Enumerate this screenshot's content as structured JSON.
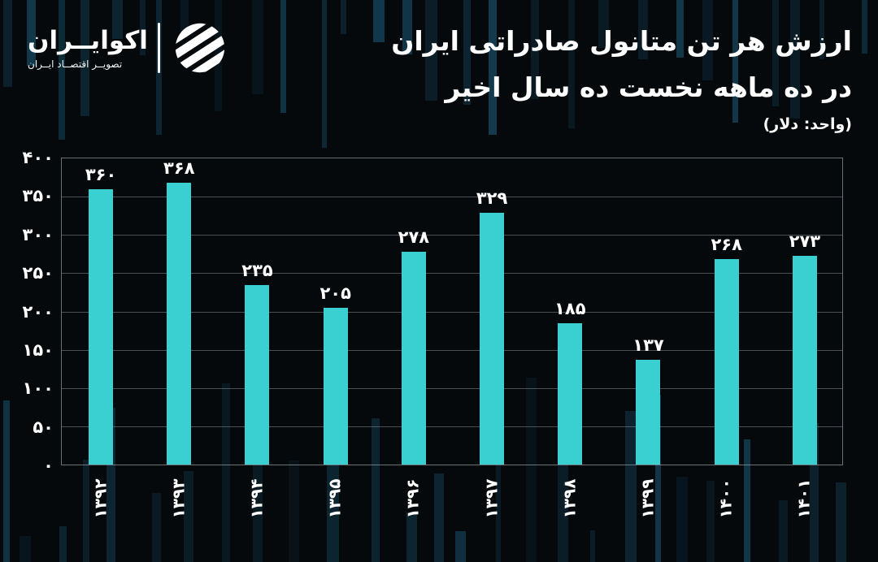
{
  "brand": {
    "name": "اکوایــران",
    "tagline": "تصویــر اقتصــاد ایــران"
  },
  "header": {
    "title_line1": "ارزش هر تن متانول صادراتی ایران",
    "title_line2": "در ده ماهه نخست ده سال اخیر",
    "unit": "(واحد: دلار)"
  },
  "colors": {
    "background": "#05090b",
    "bar": "#3acfd1",
    "text": "#ffffff",
    "grid": "#9aa4a8",
    "plot_border": "#aab4b8",
    "stripe_palette": [
      "#0a1a24",
      "#0e2836",
      "#123a4c",
      "#0d2430"
    ]
  },
  "chart_data": {
    "type": "bar",
    "title": "ارزش هر تن متانول صادراتی ایران در ده ماهه نخست ده سال اخیر",
    "unit_label": "(واحد: دلار)",
    "categories": [
      "۱۳۹۲",
      "۱۳۹۳",
      "۱۳۹۴",
      "۱۳۹۵",
      "۱۳۹۶",
      "۱۳۹۷",
      "۱۳۹۸",
      "۱۳۹۹",
      "۱۴۰۰",
      "۱۴۰۱"
    ],
    "values": [
      360,
      368,
      235,
      205,
      278,
      329,
      185,
      137,
      268,
      273
    ],
    "value_labels": [
      "۳۶۰",
      "۳۶۸",
      "۲۳۵",
      "۲۰۵",
      "۲۷۸",
      "۳۲۹",
      "۱۸۵",
      "۱۳۷",
      "۲۶۸",
      "۲۷۳"
    ],
    "y_tick_labels": [
      "۴۰۰",
      "۳۵۰",
      "۳۰۰",
      "۲۵۰",
      "۲۰۰",
      "۱۵۰",
      "۱۰۰",
      "۵۰",
      "۰"
    ],
    "ylim": [
      0,
      400
    ],
    "grid": true,
    "legend": false,
    "bar_color": "#3acfd1"
  }
}
